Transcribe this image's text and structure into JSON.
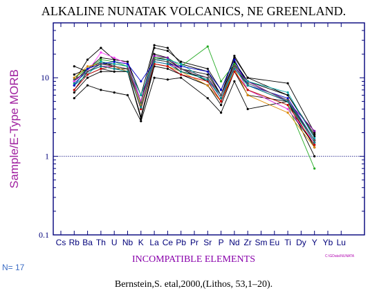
{
  "chart_data": {
    "type": "line",
    "title": "ALKALINE NUNATAK VOLCANICS, NE GREENLAND.",
    "ylabel": "Sample/E-Type MORB",
    "xlabel": "INCOMPATIBLE ELEMENTS",
    "yscale": "log",
    "ylim": [
      0.1,
      50
    ],
    "yticks": [
      {
        "value": 0.1,
        "label": "0.1"
      },
      {
        "value": 1,
        "label": "1"
      },
      {
        "value": 10,
        "label": "10"
      }
    ],
    "reference_line": {
      "value": 1,
      "style": "dotted"
    },
    "categories": [
      "Cs",
      "Rb",
      "Ba",
      "Th",
      "U",
      "Nb",
      "K",
      "La",
      "Ce",
      "Pb",
      "Pr",
      "Sr",
      "P",
      "Nd",
      "Zr",
      "Sm",
      "Eu",
      "Ti",
      "Dy",
      "Y",
      "Yb",
      "Lu"
    ],
    "series": [
      {
        "color": "#000000",
        "values": [
          null,
          9,
          17,
          24,
          17,
          16,
          6,
          26,
          24,
          15,
          null,
          12,
          6,
          19,
          10,
          null,
          null,
          6,
          null,
          1.9,
          null,
          null
        ]
      },
      {
        "color": "#000000",
        "values": [
          null,
          14,
          12,
          14,
          13,
          13,
          4,
          17,
          16,
          12,
          null,
          10,
          6,
          16,
          9,
          null,
          null,
          5,
          null,
          1.5,
          null,
          null
        ]
      },
      {
        "color": "#000000",
        "values": [
          null,
          7,
          12,
          15,
          15,
          14,
          4,
          18,
          17,
          13,
          null,
          9,
          5,
          14,
          8,
          null,
          null,
          5,
          null,
          1.6,
          null,
          null
        ]
      },
      {
        "color": "#000000",
        "values": [
          null,
          8,
          11,
          13,
          12,
          12,
          3,
          14,
          13,
          11,
          null,
          8,
          5,
          12,
          7,
          null,
          null,
          4,
          null,
          1.4,
          null,
          null
        ]
      },
      {
        "color": "#000000",
        "values": [
          null,
          5.5,
          8,
          7,
          6.5,
          6,
          2.8,
          10,
          9.5,
          10,
          null,
          5.5,
          3.6,
          9,
          4,
          null,
          null,
          5,
          null,
          1.0,
          null,
          null
        ]
      },
      {
        "color": "#000000",
        "values": [
          null,
          9,
          13,
          18,
          17,
          16,
          5,
          24,
          22,
          16,
          null,
          13,
          7,
          18,
          10,
          null,
          null,
          8.5,
          null,
          2.0,
          null,
          null
        ]
      },
      {
        "color": "#000000",
        "values": [
          null,
          6.5,
          10,
          12,
          12,
          12,
          3.2,
          15,
          14,
          11,
          null,
          8,
          4.5,
          12,
          6,
          null,
          null,
          5,
          null,
          1.3,
          null,
          null
        ]
      },
      {
        "color": "#000000",
        "values": [
          null,
          11,
          13,
          16,
          14,
          13,
          5,
          20,
          18,
          13,
          null,
          11,
          6,
          15,
          9,
          null,
          null,
          6,
          null,
          1.8,
          null,
          null
        ]
      },
      {
        "color": "#22aa22",
        "values": [
          null,
          10,
          13,
          17,
          16,
          14,
          5,
          18,
          18,
          14,
          null,
          25,
          9,
          15,
          7,
          null,
          null,
          4.5,
          null,
          0.7,
          null,
          null
        ]
      },
      {
        "color": "#8800aa",
        "values": [
          null,
          9,
          12,
          14,
          14,
          13,
          5,
          19,
          18,
          13,
          null,
          10,
          5.5,
          14,
          9,
          null,
          null,
          5,
          null,
          2.1,
          null,
          null
        ]
      },
      {
        "color": "#00aaaa",
        "values": [
          null,
          8,
          11,
          16,
          15,
          14,
          6,
          17,
          17,
          15,
          null,
          9,
          6,
          13,
          9,
          null,
          null,
          6.5,
          null,
          1.7,
          null,
          null
        ]
      },
      {
        "color": "#ff44ff",
        "values": [
          null,
          9,
          12,
          21,
          18,
          15,
          5,
          16,
          15,
          13,
          null,
          10,
          6,
          14,
          7,
          null,
          null,
          4,
          null,
          1.5,
          null,
          null
        ]
      },
      {
        "color": "#dd8800",
        "values": [
          null,
          10,
          14,
          15,
          14,
          12,
          4.5,
          15,
          14,
          12,
          null,
          8,
          5,
          13,
          6,
          null,
          null,
          3.6,
          null,
          1.3,
          null,
          null
        ]
      },
      {
        "color": "#0000cc",
        "values": [
          null,
          8,
          13,
          15,
          16,
          15,
          9,
          16,
          15,
          14,
          null,
          12,
          7,
          17,
          8,
          null,
          null,
          5.5,
          null,
          1.6,
          null,
          null
        ]
      },
      {
        "color": "#cc0000",
        "values": [
          null,
          7,
          11,
          13,
          14,
          13,
          4,
          15,
          14,
          11,
          null,
          9,
          5,
          12,
          7,
          null,
          null,
          4.5,
          null,
          1.4,
          null,
          null
        ]
      },
      {
        "color": "#008888",
        "values": [
          null,
          8.5,
          12,
          14,
          13,
          12,
          4.2,
          16,
          15,
          12,
          null,
          9.5,
          5.5,
          13,
          8,
          null,
          null,
          5,
          null,
          1.5,
          null,
          null
        ]
      },
      {
        "color": "#555555",
        "values": [
          null,
          9.5,
          12,
          15,
          14,
          13,
          4.8,
          17,
          16,
          13,
          null,
          10,
          6,
          14,
          8.5,
          null,
          null,
          5.2,
          null,
          1.6,
          null,
          null
        ]
      }
    ],
    "grid": false,
    "legend": "none"
  },
  "annotations": {
    "n_label": "N= 17",
    "file_note": "C:\\GData\\NUNATA",
    "citation": "Bernstein,S. etal,2000,(Lithos, 53,1–20)."
  },
  "colors": {
    "axis": "#00007a",
    "xlabel": "#8800aa",
    "ylabel": "#a020a0",
    "n_label": "#3b6cc4",
    "file_note": "#b000b0"
  }
}
